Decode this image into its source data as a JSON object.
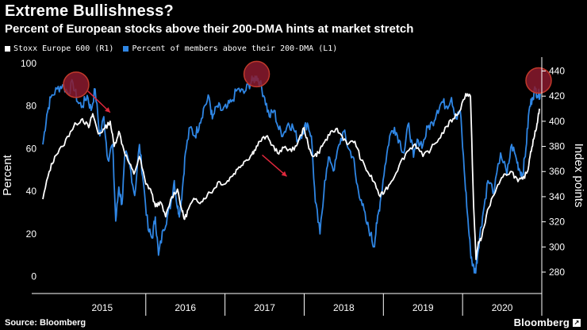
{
  "header": {
    "title": "Extreme Bullishness?",
    "subtitle": "Percent of European stocks above their 200-DMA hints at market stretch"
  },
  "footer": {
    "source": "Source: Bloomberg",
    "brand": "Bloomberg",
    "brand_mark": "↗"
  },
  "colors": {
    "background": "#000000",
    "stoxx_line": "#ffffff",
    "pct_line": "#2f86e4",
    "marker_fill": "#8b1a2e",
    "marker_stroke": "#c0392b",
    "arrow": "#e0283c"
  },
  "chart_data": {
    "type": "line",
    "title": "Extreme Bullishness?",
    "subtitle": "Percent of European stocks above their 200-DMA hints at market stretch",
    "xlabel": "",
    "ylabel_left": "Percent",
    "ylabel_right": "Index points",
    "ylim_left": [
      -5,
      100
    ],
    "ylim_right": [
      268,
      446
    ],
    "yticks_left": [
      0,
      20,
      40,
      60,
      80,
      100
    ],
    "yticks_right": [
      280,
      300,
      320,
      340,
      360,
      380,
      400,
      420,
      440
    ],
    "xlim": [
      2014.7,
      2021.0
    ],
    "x_categories": [
      "2015",
      "2016",
      "2017",
      "2018",
      "2019",
      "2020"
    ],
    "x_category_starts": [
      2014.7,
      2016.0,
      2017.0,
      2018.0,
      2019.0,
      2020.0
    ],
    "x_category_ends": [
      2016.0,
      2017.0,
      2018.0,
      2019.0,
      2020.0,
      2021.0
    ],
    "legend": [
      {
        "label": "Stoxx Europe 600  (R1)",
        "color": "#ffffff"
      },
      {
        "label": "Percent of members above their 200-DMA (L1)",
        "color": "#2f86e4"
      }
    ],
    "series": [
      {
        "name": "Stoxx Europe 600 (R1)",
        "axis": "right",
        "color": "#ffffff",
        "x": [
          2014.7,
          2014.78,
          2014.85,
          2014.95,
          2015.05,
          2015.12,
          2015.2,
          2015.28,
          2015.33,
          2015.4,
          2015.48,
          2015.55,
          2015.6,
          2015.66,
          2015.72,
          2015.78,
          2015.85,
          2015.92,
          2016.0,
          2016.06,
          2016.12,
          2016.18,
          2016.25,
          2016.33,
          2016.4,
          2016.46,
          2016.49,
          2016.55,
          2016.62,
          2016.7,
          2016.78,
          2016.85,
          2016.92,
          2017.0,
          2017.08,
          2017.16,
          2017.24,
          2017.32,
          2017.37,
          2017.44,
          2017.52,
          2017.6,
          2017.68,
          2017.76,
          2017.84,
          2017.92,
          2018.0,
          2018.06,
          2018.12,
          2018.18,
          2018.24,
          2018.32,
          2018.4,
          2018.48,
          2018.56,
          2018.64,
          2018.72,
          2018.8,
          2018.88,
          2018.96,
          2019.02,
          2019.1,
          2019.2,
          2019.3,
          2019.4,
          2019.5,
          2019.6,
          2019.7,
          2019.8,
          2019.88,
          2019.96,
          2020.04,
          2020.1,
          2020.14,
          2020.17,
          2020.2,
          2020.23,
          2020.3,
          2020.38,
          2020.46,
          2020.54,
          2020.62,
          2020.7,
          2020.76,
          2020.82,
          2020.86,
          2020.9,
          2020.94,
          2020.97
        ],
        "values": [
          338,
          360,
          372,
          380,
          392,
          398,
          402,
          395,
          406,
          390,
          394,
          400,
          380,
          392,
          378,
          368,
          358,
          372,
          350,
          346,
          332,
          336,
          324,
          340,
          346,
          328,
          322,
          332,
          338,
          336,
          342,
          345,
          352,
          350,
          356,
          362,
          368,
          372,
          377,
          384,
          388,
          381,
          374,
          380,
          376,
          383,
          395,
          378,
          372,
          375,
          382,
          389,
          394,
          388,
          382,
          384,
          369,
          360,
          352,
          340,
          345,
          352,
          365,
          376,
          382,
          372,
          378,
          386,
          396,
          402,
          408,
          422,
          420,
          332,
          290,
          304,
          305,
          325,
          340,
          350,
          358,
          360,
          352,
          354,
          360,
          376,
          386,
          398,
          410
        ]
      },
      {
        "name": "Percent of members above their 200-DMA (L1)",
        "axis": "left",
        "color": "#2f86e4",
        "x": [
          2014.7,
          2014.75,
          2014.8,
          2014.88,
          2014.95,
          2015.02,
          2015.08,
          2015.14,
          2015.2,
          2015.26,
          2015.31,
          2015.36,
          2015.42,
          2015.47,
          2015.52,
          2015.58,
          2015.62,
          2015.66,
          2015.7,
          2015.74,
          2015.8,
          2015.86,
          2015.92,
          2015.97,
          2016.03,
          2016.08,
          2016.12,
          2016.16,
          2016.22,
          2016.27,
          2016.32,
          2016.36,
          2016.4,
          2016.43,
          2016.46,
          2016.5,
          2016.56,
          2016.62,
          2016.68,
          2016.74,
          2016.8,
          2016.84,
          2016.9,
          2016.96,
          2017.02,
          2017.08,
          2017.16,
          2017.24,
          2017.3,
          2017.35,
          2017.4,
          2017.44,
          2017.5,
          2017.56,
          2017.62,
          2017.68,
          2017.74,
          2017.8,
          2017.86,
          2017.92,
          2017.98,
          2018.04,
          2018.09,
          2018.14,
          2018.2,
          2018.26,
          2018.32,
          2018.38,
          2018.44,
          2018.5,
          2018.56,
          2018.62,
          2018.66,
          2018.72,
          2018.78,
          2018.84,
          2018.88,
          2018.92,
          2018.96,
          2019.02,
          2019.08,
          2019.14,
          2019.2,
          2019.26,
          2019.32,
          2019.38,
          2019.44,
          2019.5,
          2019.56,
          2019.62,
          2019.68,
          2019.74,
          2019.8,
          2019.86,
          2019.92,
          2019.97,
          2020.02,
          2020.06,
          2020.1,
          2020.13,
          2020.16,
          2020.19,
          2020.22,
          2020.26,
          2020.32,
          2020.4,
          2020.48,
          2020.56,
          2020.62,
          2020.68,
          2020.72,
          2020.76,
          2020.8,
          2020.84,
          2020.88,
          2020.92,
          2020.95,
          2020.98
        ],
        "values": [
          62,
          76,
          84,
          88,
          90,
          86,
          91,
          82,
          80,
          85,
          78,
          88,
          66,
          75,
          55,
          62,
          26,
          42,
          34,
          58,
          52,
          38,
          62,
          44,
          22,
          18,
          28,
          10,
          22,
          28,
          35,
          45,
          32,
          30,
          40,
          58,
          70,
          66,
          72,
          80,
          84,
          74,
          80,
          78,
          79,
          82,
          88,
          86,
          90,
          92,
          94,
          91,
          84,
          75,
          78,
          69,
          67,
          72,
          70,
          64,
          68,
          72,
          66,
          35,
          20,
          45,
          56,
          50,
          62,
          68,
          60,
          56,
          44,
          36,
          26,
          20,
          14,
          25,
          35,
          52,
          66,
          70,
          64,
          58,
          72,
          56,
          64,
          62,
          70,
          72,
          78,
          82,
          80,
          84,
          74,
          78,
          50,
          30,
          12,
          5,
          2,
          10,
          20,
          30,
          45,
          40,
          58,
          48,
          62,
          55,
          50,
          48,
          60,
          78,
          84,
          88,
          85,
          86
        ]
      }
    ],
    "highlights": [
      {
        "x": 2015.12,
        "y": 90
      },
      {
        "x": 2017.4,
        "y": 95
      },
      {
        "x": 2020.96,
        "y": 92
      }
    ],
    "arrows": [
      {
        "from_x": 2015.27,
        "from_y": 87,
        "to_x": 2015.55,
        "to_y": 77
      },
      {
        "from_x": 2017.47,
        "from_y": 57,
        "to_x": 2017.78,
        "to_y": 47
      }
    ]
  }
}
